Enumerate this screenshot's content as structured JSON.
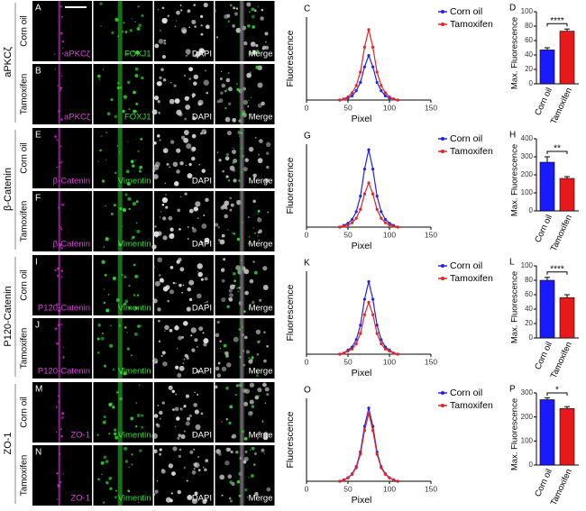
{
  "panels": [
    {
      "group": "aPKCζ",
      "rows": [
        {
          "letter": "A",
          "condition": "Corn oil",
          "labels": [
            "aPKCζ",
            "FOXJ1",
            "DAPI",
            "Merge"
          ]
        },
        {
          "letter": "B",
          "condition": "Tamoxifen",
          "labels": [
            "aPKCζ",
            "FOXJ1",
            "DAPI",
            "Merge"
          ]
        }
      ]
    },
    {
      "group": "β-Catenin",
      "rows": [
        {
          "letter": "E",
          "condition": "Corn oil",
          "labels": [
            "β-Catenin",
            "Vimentin",
            "DAPI",
            "Merge"
          ]
        },
        {
          "letter": "F",
          "condition": "Tamoxifen",
          "labels": [
            "β-Catenin",
            "Vimentin",
            "DAPI",
            "Merge"
          ]
        }
      ]
    },
    {
      "group": "P120-Catenin",
      "rows": [
        {
          "letter": "I",
          "condition": "Corn oil",
          "labels": [
            "P120-Catenin",
            "Vimentin",
            "DAPI",
            "Merge"
          ]
        },
        {
          "letter": "J",
          "condition": "Tamoxifen",
          "labels": [
            "P120-Catenin",
            "Vimentin",
            "DAPI",
            "Merge"
          ]
        }
      ]
    },
    {
      "group": "ZO-1",
      "rows": [
        {
          "letter": "M",
          "condition": "Corn oil",
          "labels": [
            "ZO-1",
            "Vimentin",
            "DAPI",
            "Merge"
          ]
        },
        {
          "letter": "N",
          "condition": "Tamoxifen",
          "labels": [
            "ZO-1",
            "Vimentin",
            "DAPI",
            "Merge"
          ]
        }
      ]
    }
  ],
  "chart_data": [
    {
      "type": "line",
      "letter": "C",
      "ylabel": "Fluorescence",
      "xlabel": "Pixel",
      "x": [
        40,
        45,
        50,
        55,
        60,
        65,
        70,
        75,
        80,
        85,
        90,
        95,
        100,
        105,
        110
      ],
      "xlim": [
        0,
        150
      ],
      "xticks": [
        0,
        50,
        100,
        150
      ],
      "ylim": [
        0,
        80
      ],
      "legend": "right",
      "series": [
        {
          "name": "Corn oil",
          "color": "#2222ee",
          "values": [
            0,
            1,
            2,
            4,
            9,
            17,
            32,
            43,
            32,
            17,
            9,
            4,
            2,
            1,
            0
          ]
        },
        {
          "name": "Tamoxifen",
          "color": "#e52222",
          "values": [
            0,
            1,
            3,
            7,
            14,
            27,
            51,
            68,
            51,
            27,
            14,
            7,
            3,
            1,
            0
          ]
        }
      ]
    },
    {
      "type": "bar",
      "letter": "D",
      "ylabel": "Max. Fluorescence",
      "categories": [
        "Corn oil",
        "Tamoxifen"
      ],
      "values": [
        47,
        73
      ],
      "errors": [
        3,
        3
      ],
      "colors": [
        "#1a1aff",
        "#e8191a"
      ],
      "ylim": [
        0,
        100
      ],
      "yticks": [
        0,
        20,
        40,
        60,
        80,
        100
      ],
      "annotation": "****"
    },
    {
      "type": "line",
      "letter": "G",
      "ylabel": "Fluorescence",
      "xlabel": "Pixel",
      "x": [
        40,
        45,
        50,
        55,
        60,
        65,
        70,
        75,
        80,
        85,
        90,
        95,
        100,
        105,
        110
      ],
      "xlim": [
        0,
        150
      ],
      "xticks": [
        0,
        50,
        100,
        150
      ],
      "ylim": [
        0,
        300
      ],
      "legend": "right",
      "series": [
        {
          "name": "Corn oil",
          "color": "#2222ee",
          "values": [
            0,
            6,
            14,
            28,
            56,
            112,
            210,
            280,
            210,
            112,
            56,
            28,
            14,
            6,
            0
          ]
        },
        {
          "name": "Tamoxifen",
          "color": "#e52222",
          "values": [
            0,
            3,
            8,
            16,
            32,
            64,
            120,
            160,
            120,
            64,
            32,
            16,
            8,
            3,
            0
          ]
        }
      ]
    },
    {
      "type": "bar",
      "letter": "H",
      "ylabel": "Max. Fluorescence",
      "categories": [
        "Corn oil",
        "Tamoxifen"
      ],
      "values": [
        270,
        180
      ],
      "errors": [
        30,
        10
      ],
      "colors": [
        "#1a1aff",
        "#e8191a"
      ],
      "ylim": [
        0,
        400
      ],
      "yticks": [
        0,
        100,
        200,
        300,
        400
      ],
      "annotation": "**"
    },
    {
      "type": "line",
      "letter": "K",
      "ylabel": "Fluorescence",
      "xlabel": "Pixel",
      "x": [
        40,
        45,
        50,
        55,
        60,
        65,
        70,
        75,
        80,
        85,
        90,
        95,
        100,
        105,
        110
      ],
      "xlim": [
        0,
        150
      ],
      "xticks": [
        0,
        50,
        100,
        150
      ],
      "ylim": [
        0,
        80
      ],
      "legend": "right",
      "series": [
        {
          "name": "Corn oil",
          "color": "#2222ee",
          "values": [
            0,
            1,
            4,
            7,
            14,
            28,
            53,
            70,
            53,
            28,
            14,
            7,
            4,
            1,
            0
          ]
        },
        {
          "name": "Tamoxifen",
          "color": "#e52222",
          "values": [
            0,
            1,
            3,
            5,
            10,
            20,
            38,
            50,
            38,
            20,
            10,
            5,
            3,
            1,
            0
          ]
        }
      ]
    },
    {
      "type": "bar",
      "letter": "L",
      "ylabel": "Max. Fluorescence",
      "categories": [
        "Corn oil",
        "Tamoxifen"
      ],
      "values": [
        80,
        56
      ],
      "errors": [
        4,
        4
      ],
      "colors": [
        "#1a1aff",
        "#e8191a"
      ],
      "ylim": [
        0,
        100
      ],
      "yticks": [
        0,
        20,
        40,
        60,
        80,
        100
      ],
      "annotation": "****"
    },
    {
      "type": "line",
      "letter": "O",
      "ylabel": "Fluorescence",
      "xlabel": "Pixel",
      "x": [
        40,
        45,
        50,
        55,
        60,
        65,
        70,
        75,
        80,
        85,
        90,
        95,
        100,
        105,
        110
      ],
      "xlim": [
        0,
        150
      ],
      "xticks": [
        0,
        50,
        100,
        150
      ],
      "ylim": [
        0,
        300
      ],
      "legend": "right",
      "series": [
        {
          "name": "Corn oil",
          "color": "#2222ee",
          "values": [
            0,
            5,
            13,
            27,
            53,
            106,
            199,
            265,
            199,
            106,
            53,
            27,
            13,
            5,
            0
          ]
        },
        {
          "name": "Tamoxifen",
          "color": "#e52222",
          "values": [
            0,
            5,
            12,
            25,
            49,
            98,
            184,
            245,
            184,
            98,
            49,
            25,
            12,
            5,
            0
          ]
        }
      ]
    },
    {
      "type": "bar",
      "letter": "P",
      "ylabel": "Max. Fluorescence",
      "categories": [
        "Corn oil",
        "Tamoxifen"
      ],
      "values": [
        272,
        235
      ],
      "errors": [
        8,
        8
      ],
      "colors": [
        "#1a1aff",
        "#e8191a"
      ],
      "ylim": [
        0,
        300
      ],
      "yticks": [
        0,
        100,
        200,
        300
      ],
      "annotation": "*"
    }
  ]
}
